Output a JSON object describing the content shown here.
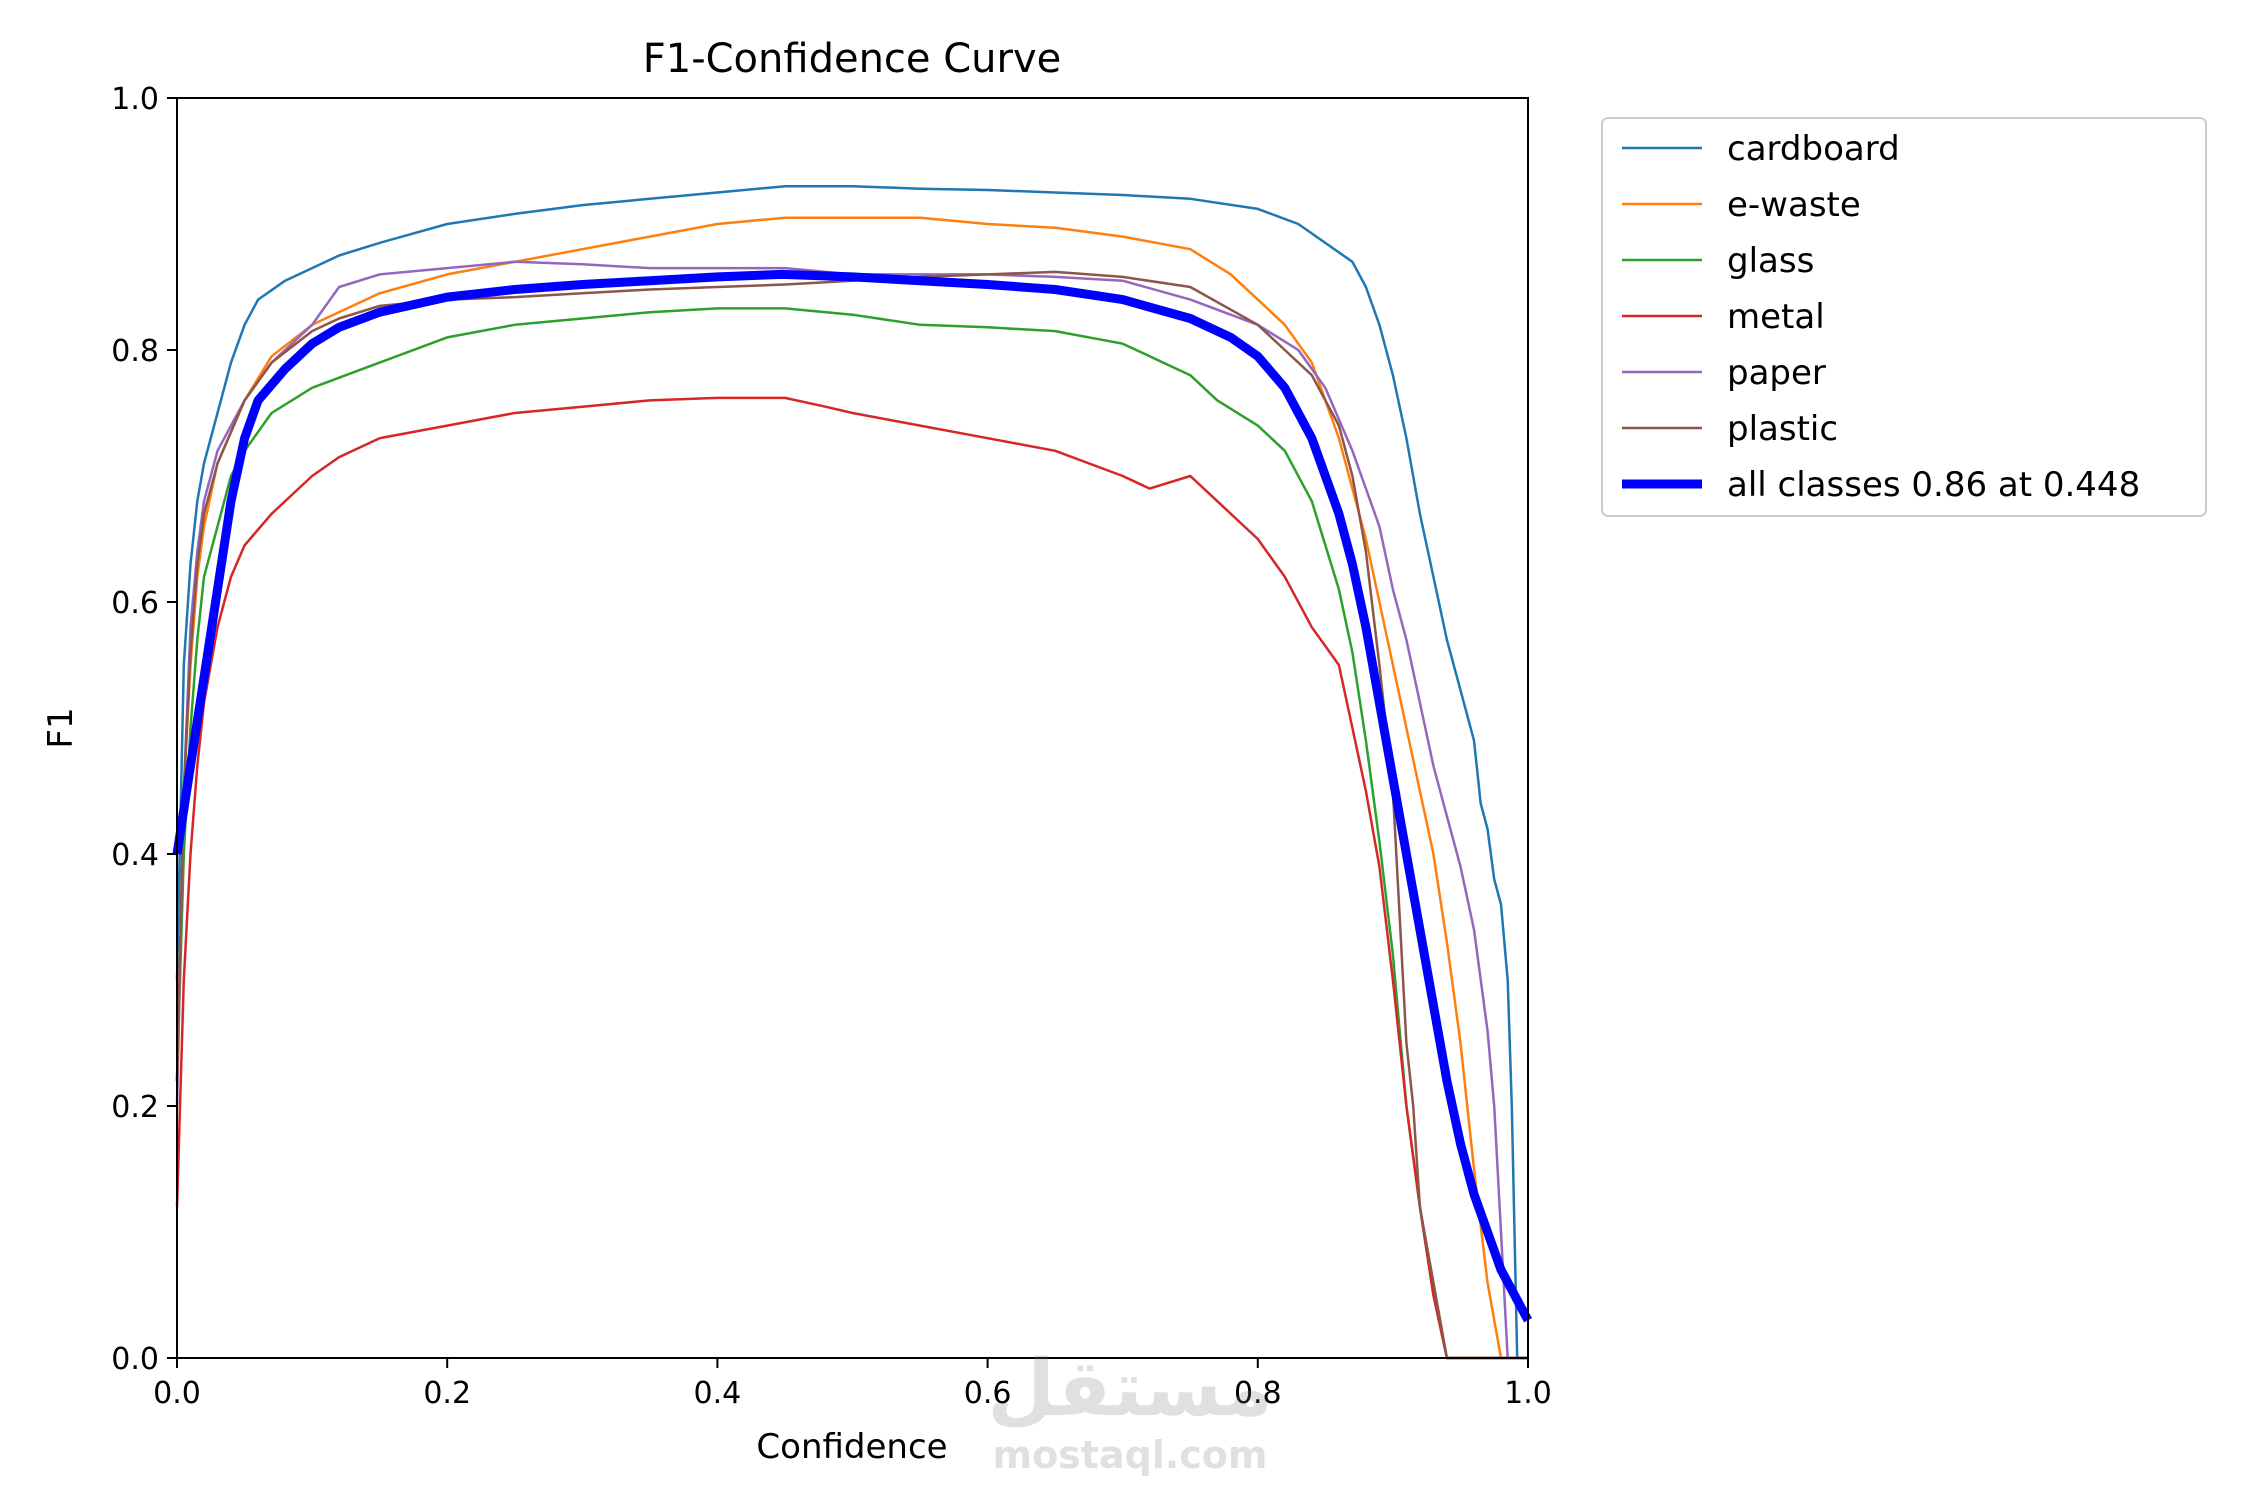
{
  "chart_data": {
    "type": "line",
    "title": "F1-Confidence Curve",
    "xlabel": "Confidence",
    "ylabel": "F1",
    "xlim": [
      0,
      1
    ],
    "ylim": [
      0,
      1
    ],
    "xticks": [
      "0.0",
      "0.2",
      "0.4",
      "0.6",
      "0.8",
      "1.0"
    ],
    "yticks": [
      "0.0",
      "0.2",
      "0.4",
      "0.6",
      "0.8",
      "1.0"
    ],
    "grid": false,
    "legend_position": "outside-right-top",
    "series": [
      {
        "name": "cardboard",
        "color": "#1f77b4",
        "width": "normal",
        "points": [
          [
            0.0,
            0.3
          ],
          [
            0.005,
            0.55
          ],
          [
            0.01,
            0.63
          ],
          [
            0.015,
            0.68
          ],
          [
            0.02,
            0.71
          ],
          [
            0.03,
            0.75
          ],
          [
            0.04,
            0.79
          ],
          [
            0.05,
            0.82
          ],
          [
            0.06,
            0.84
          ],
          [
            0.08,
            0.855
          ],
          [
            0.1,
            0.865
          ],
          [
            0.12,
            0.875
          ],
          [
            0.15,
            0.885
          ],
          [
            0.2,
            0.9
          ],
          [
            0.25,
            0.908
          ],
          [
            0.3,
            0.915
          ],
          [
            0.35,
            0.92
          ],
          [
            0.4,
            0.925
          ],
          [
            0.45,
            0.93
          ],
          [
            0.5,
            0.93
          ],
          [
            0.55,
            0.928
          ],
          [
            0.6,
            0.927
          ],
          [
            0.65,
            0.925
          ],
          [
            0.7,
            0.923
          ],
          [
            0.75,
            0.92
          ],
          [
            0.8,
            0.912
          ],
          [
            0.83,
            0.9
          ],
          [
            0.85,
            0.885
          ],
          [
            0.87,
            0.87
          ],
          [
            0.88,
            0.85
          ],
          [
            0.89,
            0.82
          ],
          [
            0.9,
            0.78
          ],
          [
            0.91,
            0.73
          ],
          [
            0.92,
            0.67
          ],
          [
            0.93,
            0.62
          ],
          [
            0.94,
            0.57
          ],
          [
            0.95,
            0.53
          ],
          [
            0.96,
            0.49
          ],
          [
            0.965,
            0.44
          ],
          [
            0.97,
            0.42
          ],
          [
            0.975,
            0.38
          ],
          [
            0.98,
            0.36
          ],
          [
            0.985,
            0.3
          ],
          [
            0.988,
            0.2
          ],
          [
            0.99,
            0.1
          ],
          [
            0.992,
            0.0
          ],
          [
            1.0,
            0.0
          ]
        ]
      },
      {
        "name": "e-waste",
        "color": "#ff7f0e",
        "width": "normal",
        "points": [
          [
            0.0,
            0.22
          ],
          [
            0.005,
            0.45
          ],
          [
            0.01,
            0.55
          ],
          [
            0.015,
            0.62
          ],
          [
            0.02,
            0.66
          ],
          [
            0.03,
            0.71
          ],
          [
            0.05,
            0.76
          ],
          [
            0.07,
            0.795
          ],
          [
            0.1,
            0.82
          ],
          [
            0.15,
            0.845
          ],
          [
            0.2,
            0.86
          ],
          [
            0.25,
            0.87
          ],
          [
            0.3,
            0.88
          ],
          [
            0.35,
            0.89
          ],
          [
            0.4,
            0.9
          ],
          [
            0.45,
            0.905
          ],
          [
            0.5,
            0.905
          ],
          [
            0.55,
            0.905
          ],
          [
            0.6,
            0.9
          ],
          [
            0.65,
            0.897
          ],
          [
            0.7,
            0.89
          ],
          [
            0.75,
            0.88
          ],
          [
            0.78,
            0.86
          ],
          [
            0.8,
            0.84
          ],
          [
            0.82,
            0.82
          ],
          [
            0.84,
            0.79
          ],
          [
            0.86,
            0.73
          ],
          [
            0.88,
            0.65
          ],
          [
            0.9,
            0.55
          ],
          [
            0.92,
            0.45
          ],
          [
            0.93,
            0.4
          ],
          [
            0.94,
            0.33
          ],
          [
            0.95,
            0.25
          ],
          [
            0.96,
            0.15
          ],
          [
            0.97,
            0.06
          ],
          [
            0.98,
            0.0
          ],
          [
            1.0,
            0.0
          ]
        ]
      },
      {
        "name": "glass",
        "color": "#2ca02c",
        "width": "normal",
        "points": [
          [
            0.0,
            0.22
          ],
          [
            0.005,
            0.4
          ],
          [
            0.01,
            0.5
          ],
          [
            0.015,
            0.57
          ],
          [
            0.02,
            0.62
          ],
          [
            0.03,
            0.66
          ],
          [
            0.04,
            0.7
          ],
          [
            0.05,
            0.72
          ],
          [
            0.07,
            0.75
          ],
          [
            0.1,
            0.77
          ],
          [
            0.15,
            0.79
          ],
          [
            0.2,
            0.81
          ],
          [
            0.25,
            0.82
          ],
          [
            0.3,
            0.825
          ],
          [
            0.35,
            0.83
          ],
          [
            0.4,
            0.833
          ],
          [
            0.45,
            0.833
          ],
          [
            0.5,
            0.828
          ],
          [
            0.55,
            0.82
          ],
          [
            0.6,
            0.818
          ],
          [
            0.65,
            0.815
          ],
          [
            0.7,
            0.805
          ],
          [
            0.73,
            0.79
          ],
          [
            0.75,
            0.78
          ],
          [
            0.77,
            0.76
          ],
          [
            0.8,
            0.74
          ],
          [
            0.82,
            0.72
          ],
          [
            0.84,
            0.68
          ],
          [
            0.86,
            0.61
          ],
          [
            0.87,
            0.56
          ],
          [
            0.88,
            0.49
          ],
          [
            0.89,
            0.41
          ],
          [
            0.9,
            0.32
          ],
          [
            0.91,
            0.2
          ],
          [
            0.92,
            0.12
          ],
          [
            0.93,
            0.05
          ],
          [
            0.94,
            0.0
          ],
          [
            1.0,
            0.0
          ]
        ]
      },
      {
        "name": "metal",
        "color": "#d62728",
        "width": "normal",
        "points": [
          [
            0.0,
            0.12
          ],
          [
            0.005,
            0.3
          ],
          [
            0.01,
            0.4
          ],
          [
            0.015,
            0.47
          ],
          [
            0.02,
            0.52
          ],
          [
            0.03,
            0.58
          ],
          [
            0.04,
            0.62
          ],
          [
            0.05,
            0.645
          ],
          [
            0.07,
            0.67
          ],
          [
            0.1,
            0.7
          ],
          [
            0.12,
            0.715
          ],
          [
            0.15,
            0.73
          ],
          [
            0.2,
            0.74
          ],
          [
            0.25,
            0.75
          ],
          [
            0.3,
            0.755
          ],
          [
            0.35,
            0.76
          ],
          [
            0.4,
            0.762
          ],
          [
            0.45,
            0.762
          ],
          [
            0.48,
            0.755
          ],
          [
            0.5,
            0.75
          ],
          [
            0.55,
            0.74
          ],
          [
            0.6,
            0.73
          ],
          [
            0.65,
            0.72
          ],
          [
            0.7,
            0.7
          ],
          [
            0.72,
            0.69
          ],
          [
            0.75,
            0.7
          ],
          [
            0.77,
            0.68
          ],
          [
            0.8,
            0.65
          ],
          [
            0.82,
            0.62
          ],
          [
            0.84,
            0.58
          ],
          [
            0.86,
            0.55
          ],
          [
            0.87,
            0.5
          ],
          [
            0.88,
            0.45
          ],
          [
            0.89,
            0.39
          ],
          [
            0.9,
            0.3
          ],
          [
            0.91,
            0.2
          ],
          [
            0.92,
            0.12
          ],
          [
            0.93,
            0.05
          ],
          [
            0.94,
            0.0
          ],
          [
            1.0,
            0.0
          ]
        ]
      },
      {
        "name": "paper",
        "color": "#9467bd",
        "width": "normal",
        "points": [
          [
            0.0,
            0.2
          ],
          [
            0.005,
            0.45
          ],
          [
            0.01,
            0.58
          ],
          [
            0.015,
            0.64
          ],
          [
            0.02,
            0.68
          ],
          [
            0.03,
            0.72
          ],
          [
            0.05,
            0.76
          ],
          [
            0.07,
            0.79
          ],
          [
            0.1,
            0.82
          ],
          [
            0.12,
            0.85
          ],
          [
            0.15,
            0.86
          ],
          [
            0.2,
            0.865
          ],
          [
            0.25,
            0.87
          ],
          [
            0.3,
            0.868
          ],
          [
            0.35,
            0.865
          ],
          [
            0.4,
            0.865
          ],
          [
            0.45,
            0.865
          ],
          [
            0.5,
            0.86
          ],
          [
            0.55,
            0.86
          ],
          [
            0.6,
            0.86
          ],
          [
            0.65,
            0.858
          ],
          [
            0.7,
            0.855
          ],
          [
            0.75,
            0.84
          ],
          [
            0.8,
            0.82
          ],
          [
            0.83,
            0.8
          ],
          [
            0.85,
            0.77
          ],
          [
            0.87,
            0.72
          ],
          [
            0.89,
            0.66
          ],
          [
            0.9,
            0.61
          ],
          [
            0.91,
            0.57
          ],
          [
            0.92,
            0.52
          ],
          [
            0.93,
            0.47
          ],
          [
            0.94,
            0.43
          ],
          [
            0.95,
            0.39
          ],
          [
            0.96,
            0.34
          ],
          [
            0.97,
            0.26
          ],
          [
            0.975,
            0.2
          ],
          [
            0.98,
            0.1
          ],
          [
            0.985,
            0.0
          ],
          [
            1.0,
            0.0
          ]
        ]
      },
      {
        "name": "plastic",
        "color": "#8c564b",
        "width": "normal",
        "points": [
          [
            0.0,
            0.22
          ],
          [
            0.005,
            0.45
          ],
          [
            0.01,
            0.56
          ],
          [
            0.015,
            0.63
          ],
          [
            0.02,
            0.67
          ],
          [
            0.03,
            0.71
          ],
          [
            0.05,
            0.76
          ],
          [
            0.07,
            0.79
          ],
          [
            0.1,
            0.815
          ],
          [
            0.12,
            0.825
          ],
          [
            0.15,
            0.835
          ],
          [
            0.2,
            0.84
          ],
          [
            0.25,
            0.842
          ],
          [
            0.3,
            0.845
          ],
          [
            0.35,
            0.848
          ],
          [
            0.4,
            0.85
          ],
          [
            0.45,
            0.852
          ],
          [
            0.5,
            0.855
          ],
          [
            0.55,
            0.858
          ],
          [
            0.6,
            0.86
          ],
          [
            0.65,
            0.862
          ],
          [
            0.7,
            0.858
          ],
          [
            0.75,
            0.85
          ],
          [
            0.8,
            0.82
          ],
          [
            0.82,
            0.8
          ],
          [
            0.84,
            0.78
          ],
          [
            0.86,
            0.74
          ],
          [
            0.87,
            0.7
          ],
          [
            0.88,
            0.64
          ],
          [
            0.89,
            0.55
          ],
          [
            0.9,
            0.45
          ],
          [
            0.905,
            0.35
          ],
          [
            0.91,
            0.25
          ],
          [
            0.915,
            0.2
          ],
          [
            0.92,
            0.12
          ],
          [
            0.93,
            0.06
          ],
          [
            0.94,
            0.0
          ],
          [
            1.0,
            0.0
          ]
        ]
      },
      {
        "name": "all classes 0.86 at 0.448",
        "color": "#0000ff",
        "width": "bold",
        "points": [
          [
            0.0,
            0.4
          ],
          [
            0.01,
            0.47
          ],
          [
            0.02,
            0.54
          ],
          [
            0.03,
            0.61
          ],
          [
            0.04,
            0.68
          ],
          [
            0.05,
            0.73
          ],
          [
            0.06,
            0.76
          ],
          [
            0.08,
            0.785
          ],
          [
            0.1,
            0.805
          ],
          [
            0.12,
            0.818
          ],
          [
            0.15,
            0.83
          ],
          [
            0.2,
            0.842
          ],
          [
            0.25,
            0.848
          ],
          [
            0.3,
            0.852
          ],
          [
            0.35,
            0.855
          ],
          [
            0.4,
            0.858
          ],
          [
            0.448,
            0.86
          ],
          [
            0.5,
            0.858
          ],
          [
            0.55,
            0.855
          ],
          [
            0.6,
            0.852
          ],
          [
            0.65,
            0.848
          ],
          [
            0.7,
            0.84
          ],
          [
            0.75,
            0.825
          ],
          [
            0.78,
            0.81
          ],
          [
            0.8,
            0.795
          ],
          [
            0.82,
            0.77
          ],
          [
            0.84,
            0.73
          ],
          [
            0.86,
            0.67
          ],
          [
            0.87,
            0.63
          ],
          [
            0.88,
            0.58
          ],
          [
            0.89,
            0.52
          ],
          [
            0.9,
            0.46
          ],
          [
            0.91,
            0.4
          ],
          [
            0.92,
            0.34
          ],
          [
            0.93,
            0.28
          ],
          [
            0.94,
            0.22
          ],
          [
            0.95,
            0.17
          ],
          [
            0.96,
            0.13
          ],
          [
            0.97,
            0.1
          ],
          [
            0.98,
            0.07
          ],
          [
            0.99,
            0.05
          ],
          [
            1.0,
            0.03
          ]
        ]
      }
    ]
  },
  "watermark": {
    "arabic": "مستقل",
    "latin": "mostaql.com"
  }
}
